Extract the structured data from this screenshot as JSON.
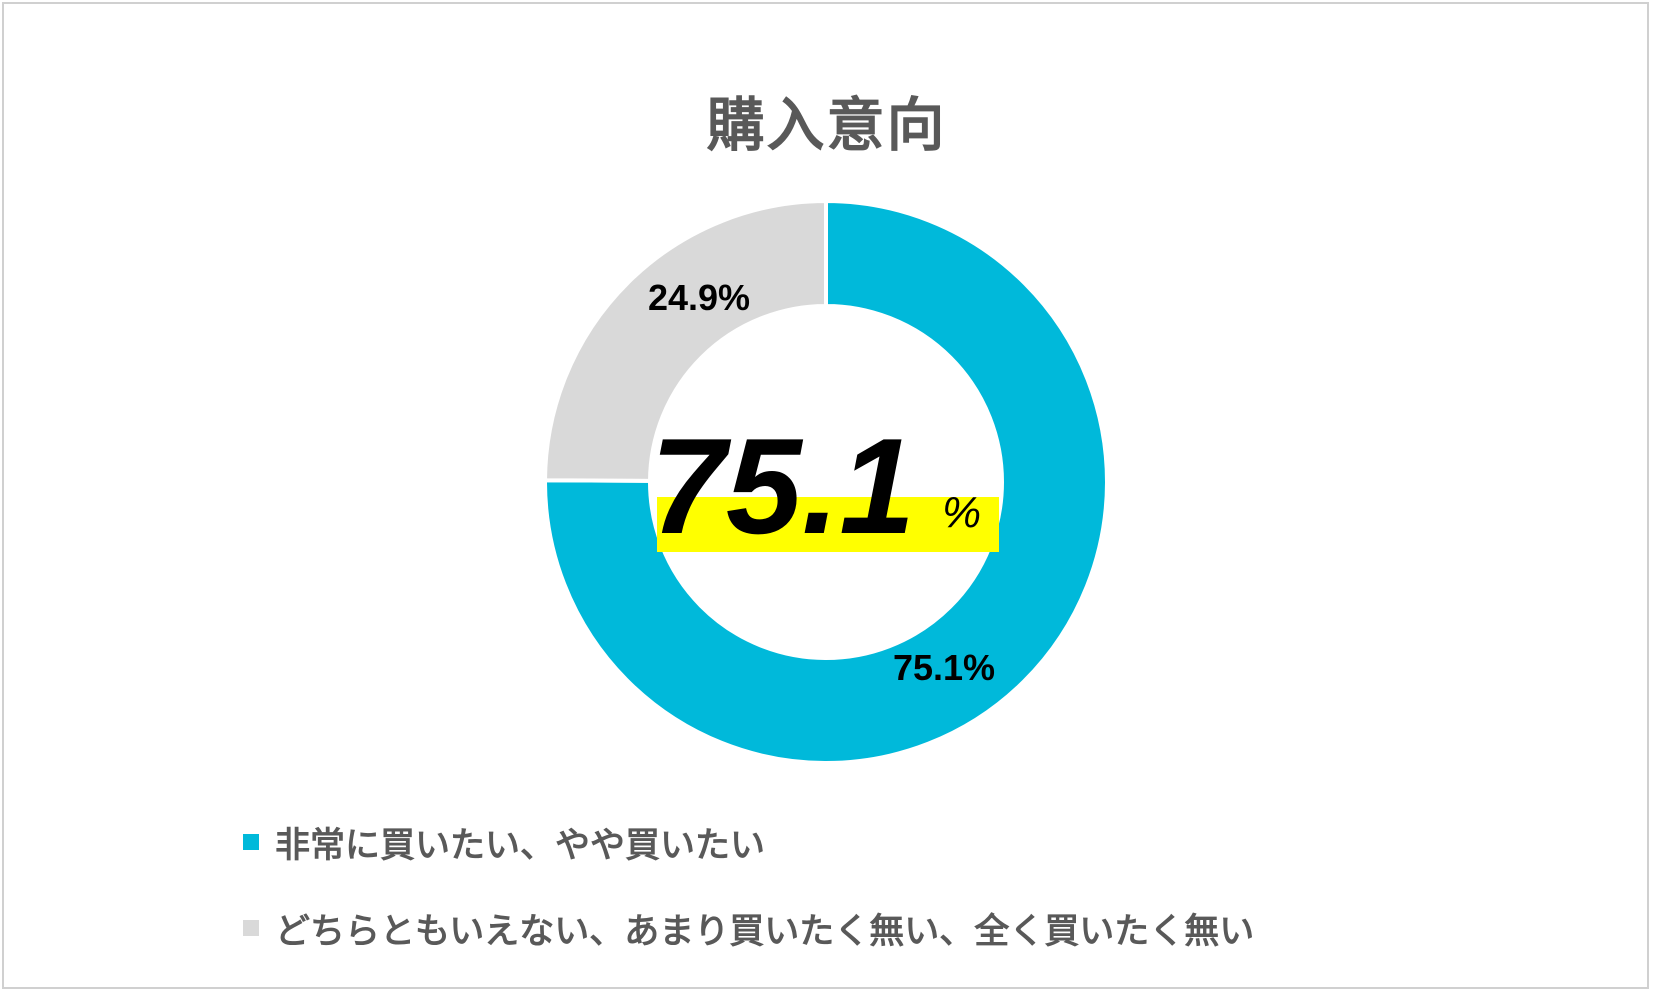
{
  "chart_data": {
    "type": "pie",
    "title": "購入意向",
    "categories": [
      "非常に買いたい、やや買いたい",
      "どちらともいえない、あまり買いたく無い、全く買いたく無い"
    ],
    "values": [
      75.1,
      24.9
    ],
    "labels": [
      "75.1%",
      "24.9%"
    ],
    "colors": [
      "#00B9DA",
      "#D9D9D9"
    ],
    "donut": true,
    "legend_position": "bottom",
    "center_value": "75.1",
    "center_unit": "%",
    "center_highlight": "#FFFF00"
  }
}
